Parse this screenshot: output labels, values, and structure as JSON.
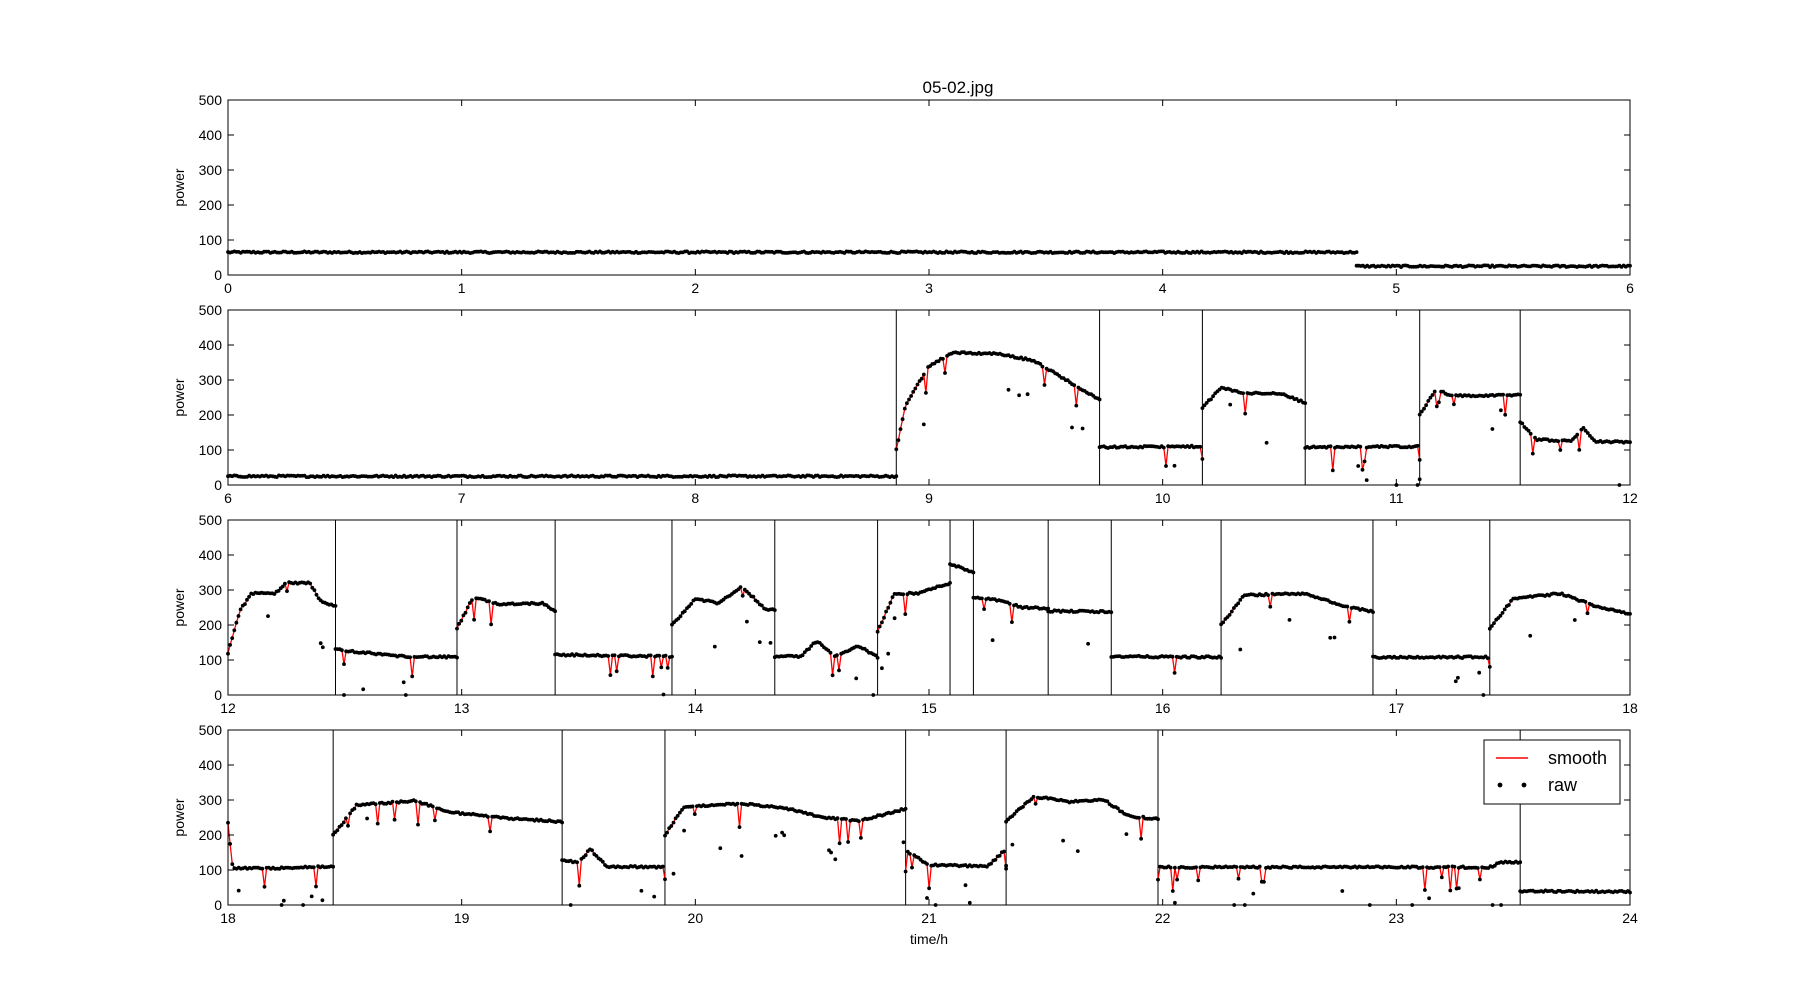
{
  "chart_data": {
    "type": "scatter",
    "title": "05-02.jpg",
    "xlabel": "time/h",
    "ylabel": "power",
    "ylim": [
      0,
      500
    ],
    "yticks": [
      "0",
      "100",
      "200",
      "300",
      "400",
      "500"
    ],
    "grid": false,
    "legend": {
      "placement": "top-right",
      "entries": [
        {
          "name": "smooth",
          "style": "red line"
        },
        {
          "name": "raw",
          "style": "black dots"
        }
      ]
    },
    "colors": {
      "smooth": "#ff0000",
      "raw": "#000000",
      "boundary": "#000000"
    },
    "panels": [
      {
        "xlim": [
          0,
          6
        ],
        "xticks": [
          "0",
          "1",
          "2",
          "3",
          "4",
          "5",
          "6"
        ],
        "segments": [
          {
            "start": 0.0,
            "end": 4.83,
            "levels": [
              [
                0.0,
                65
              ],
              [
                4.83,
                65
              ]
            ]
          },
          {
            "start": 4.83,
            "end": 6.0,
            "levels": [
              [
                4.83,
                25
              ],
              [
                6.0,
                25
              ]
            ]
          }
        ],
        "boundaries": []
      },
      {
        "xlim": [
          6,
          12
        ],
        "xticks": [
          "6",
          "7",
          "8",
          "9",
          "10",
          "11",
          "12"
        ],
        "segments": [
          {
            "start": 6.0,
            "end": 8.86,
            "levels": [
              [
                6.0,
                25
              ],
              [
                8.86,
                25
              ]
            ]
          },
          {
            "start": 8.86,
            "end": 9.73,
            "levels": [
              [
                8.86,
                100
              ],
              [
                8.9,
                230
              ],
              [
                9.0,
                340
              ],
              [
                9.1,
                378
              ],
              [
                9.3,
                375
              ],
              [
                9.45,
                355
              ],
              [
                9.6,
                295
              ],
              [
                9.73,
                245
              ]
            ]
          },
          {
            "start": 9.73,
            "end": 10.17,
            "levels": [
              [
                9.73,
                108
              ],
              [
                10.17,
                110
              ]
            ]
          },
          {
            "start": 10.17,
            "end": 10.61,
            "levels": [
              [
                10.17,
                220
              ],
              [
                10.25,
                278
              ],
              [
                10.35,
                262
              ],
              [
                10.5,
                262
              ],
              [
                10.61,
                235
              ]
            ]
          },
          {
            "start": 10.61,
            "end": 11.1,
            "levels": [
              [
                10.61,
                108
              ],
              [
                11.1,
                110
              ]
            ]
          },
          {
            "start": 11.1,
            "end": 11.53,
            "levels": [
              [
                11.1,
                200
              ],
              [
                11.17,
                275
              ],
              [
                11.23,
                255
              ],
              [
                11.4,
                255
              ],
              [
                11.53,
                258
              ]
            ]
          },
          {
            "start": 11.53,
            "end": 12.0,
            "levels": [
              [
                11.53,
                180
              ],
              [
                11.6,
                130
              ],
              [
                11.75,
                125
              ],
              [
                11.8,
                165
              ],
              [
                11.85,
                125
              ],
              [
                12.0,
                122
              ]
            ]
          }
        ],
        "boundaries": [
          8.86,
          9.73,
          10.17,
          10.61,
          11.1,
          11.53
        ]
      },
      {
        "xlim": [
          12,
          18
        ],
        "xticks": [
          "12",
          "13",
          "14",
          "15",
          "16",
          "17",
          "18"
        ],
        "segments": [
          {
            "start": 12.0,
            "end": 12.46,
            "levels": [
              [
                12.0,
                120
              ],
              [
                12.05,
                240
              ],
              [
                12.1,
                290
              ],
              [
                12.2,
                290
              ],
              [
                12.25,
                320
              ],
              [
                12.35,
                320
              ],
              [
                12.4,
                265
              ],
              [
                12.46,
                255
              ]
            ]
          },
          {
            "start": 12.46,
            "end": 12.98,
            "levels": [
              [
                12.46,
                130
              ],
              [
                12.6,
                120
              ],
              [
                12.75,
                110
              ],
              [
                12.98,
                108
              ]
            ]
          },
          {
            "start": 12.98,
            "end": 13.4,
            "levels": [
              [
                12.98,
                190
              ],
              [
                13.05,
                280
              ],
              [
                13.15,
                260
              ],
              [
                13.35,
                262
              ],
              [
                13.4,
                240
              ]
            ]
          },
          {
            "start": 13.4,
            "end": 13.9,
            "levels": [
              [
                13.4,
                115
              ],
              [
                13.9,
                110
              ]
            ]
          },
          {
            "start": 13.9,
            "end": 14.34,
            "levels": [
              [
                13.9,
                200
              ],
              [
                14.0,
                275
              ],
              [
                14.1,
                262
              ],
              [
                14.2,
                310
              ],
              [
                14.3,
                245
              ],
              [
                14.34,
                245
              ]
            ]
          },
          {
            "start": 14.34,
            "end": 14.78,
            "levels": [
              [
                14.34,
                110
              ],
              [
                14.45,
                110
              ],
              [
                14.52,
                155
              ],
              [
                14.6,
                110
              ],
              [
                14.7,
                140
              ],
              [
                14.78,
                108
              ]
            ]
          },
          {
            "start": 14.78,
            "end": 15.09,
            "levels": [
              [
                14.78,
                180
              ],
              [
                14.85,
                290
              ],
              [
                14.95,
                290
              ],
              [
                15.09,
                320
              ]
            ]
          },
          {
            "start": 15.09,
            "end": 15.19,
            "levels": [
              [
                15.09,
                375
              ],
              [
                15.19,
                350
              ]
            ]
          },
          {
            "start": 15.19,
            "end": 15.51,
            "levels": [
              [
                15.19,
                280
              ],
              [
                15.3,
                270
              ],
              [
                15.4,
                250
              ],
              [
                15.51,
                248
              ]
            ]
          },
          {
            "start": 15.51,
            "end": 15.78,
            "levels": [
              [
                15.51,
                240
              ],
              [
                15.78,
                238
              ]
            ]
          },
          {
            "start": 15.78,
            "end": 16.25,
            "levels": [
              [
                15.78,
                110
              ],
              [
                16.25,
                108
              ]
            ]
          },
          {
            "start": 16.25,
            "end": 16.9,
            "levels": [
              [
                16.25,
                200
              ],
              [
                16.35,
                285
              ],
              [
                16.6,
                290
              ],
              [
                16.8,
                250
              ],
              [
                16.9,
                238
              ]
            ]
          },
          {
            "start": 16.9,
            "end": 17.4,
            "levels": [
              [
                16.9,
                108
              ],
              [
                17.4,
                108
              ]
            ]
          },
          {
            "start": 17.4,
            "end": 18.0,
            "levels": [
              [
                17.4,
                190
              ],
              [
                17.5,
                275
              ],
              [
                17.7,
                290
              ],
              [
                17.85,
                255
              ],
              [
                18.0,
                232
              ]
            ]
          }
        ],
        "boundaries": [
          12.46,
          12.98,
          13.4,
          13.9,
          14.34,
          14.78,
          15.09,
          15.19,
          15.51,
          15.78,
          16.25,
          16.9,
          17.4
        ]
      },
      {
        "xlim": [
          18,
          24
        ],
        "xticks": [
          "18",
          "19",
          "20",
          "21",
          "22",
          "23",
          "24"
        ],
        "segments": [
          {
            "start": 18.0,
            "end": 18.45,
            "levels": [
              [
                18.0,
                235
              ],
              [
                18.02,
                105
              ],
              [
                18.2,
                105
              ],
              [
                18.45,
                110
              ]
            ]
          },
          {
            "start": 18.45,
            "end": 19.43,
            "levels": [
              [
                18.45,
                200
              ],
              [
                18.55,
                285
              ],
              [
                18.8,
                298
              ],
              [
                18.95,
                265
              ],
              [
                19.2,
                248
              ],
              [
                19.43,
                238
              ]
            ]
          },
          {
            "start": 19.43,
            "end": 19.87,
            "levels": [
              [
                19.43,
                130
              ],
              [
                19.5,
                120
              ],
              [
                19.55,
                160
              ],
              [
                19.62,
                110
              ],
              [
                19.87,
                108
              ]
            ]
          },
          {
            "start": 19.87,
            "end": 20.9,
            "levels": [
              [
                19.87,
                200
              ],
              [
                19.95,
                280
              ],
              [
                20.2,
                290
              ],
              [
                20.4,
                275
              ],
              [
                20.55,
                250
              ],
              [
                20.7,
                240
              ],
              [
                20.9,
                275
              ]
            ]
          },
          {
            "start": 20.9,
            "end": 21.33,
            "levels": [
              [
                20.9,
                155
              ],
              [
                21.0,
                115
              ],
              [
                21.25,
                110
              ],
              [
                21.33,
                160
              ]
            ]
          },
          {
            "start": 21.33,
            "end": 21.98,
            "levels": [
              [
                21.33,
                240
              ],
              [
                21.45,
                310
              ],
              [
                21.6,
                295
              ],
              [
                21.75,
                300
              ],
              [
                21.85,
                255
              ],
              [
                21.98,
                245
              ]
            ]
          },
          {
            "start": 21.98,
            "end": 23.53,
            "levels": [
              [
                21.98,
                108
              ],
              [
                23.4,
                108
              ],
              [
                23.45,
                122
              ],
              [
                23.53,
                122
              ]
            ]
          },
          {
            "start": 23.53,
            "end": 24.0,
            "levels": [
              [
                23.53,
                40
              ],
              [
                24.0,
                38
              ]
            ]
          }
        ],
        "boundaries": [
          18.45,
          19.43,
          19.87,
          20.9,
          21.33,
          21.98,
          23.53
        ]
      }
    ]
  }
}
